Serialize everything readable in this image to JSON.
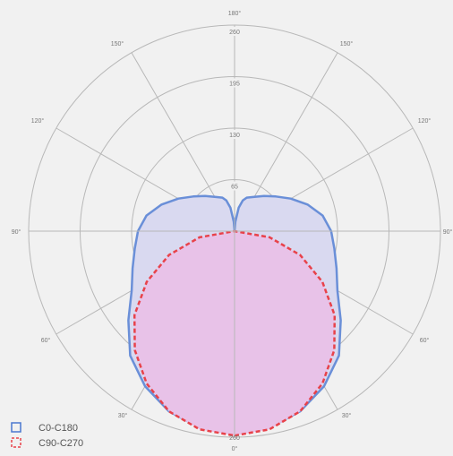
{
  "chart_data": {
    "type": "polar",
    "title": "",
    "radial_ticks": [
      "65",
      "130",
      "195",
      "260"
    ],
    "radial_max": 260,
    "angle_labels": [
      "180°",
      "150°",
      "150°",
      "120°",
      "120°",
      "90°",
      "90°",
      "60°",
      "60°",
      "30°",
      "30°",
      "0°"
    ],
    "bottom_value_label": "260",
    "grid": true,
    "legend_position": "bottom-left",
    "series": [
      {
        "name": "C0-C180",
        "color": "#6a8fd8",
        "fill": "#d9d9f0",
        "line_style": "solid",
        "angles_deg": [
          0,
          10,
          20,
          30,
          40,
          50,
          60,
          70,
          80,
          90,
          100,
          110,
          120,
          130,
          140,
          150,
          160,
          165,
          170,
          175,
          180
        ],
        "values": [
          255,
          252,
          242,
          226,
          205,
          175,
          150,
          137,
          128,
          122,
          113,
          98,
          82,
          68,
          58,
          50,
          45,
          40,
          30,
          12,
          0
        ]
      },
      {
        "name": "C90-C270",
        "color": "#e8424a",
        "fill": "#e8c2e8",
        "line_style": "dashed",
        "angles_deg": [
          0,
          10,
          20,
          30,
          40,
          50,
          60,
          70,
          80,
          90
        ],
        "values": [
          258,
          254,
          242,
          222,
          196,
          165,
          128,
          88,
          45,
          0
        ]
      }
    ]
  }
}
